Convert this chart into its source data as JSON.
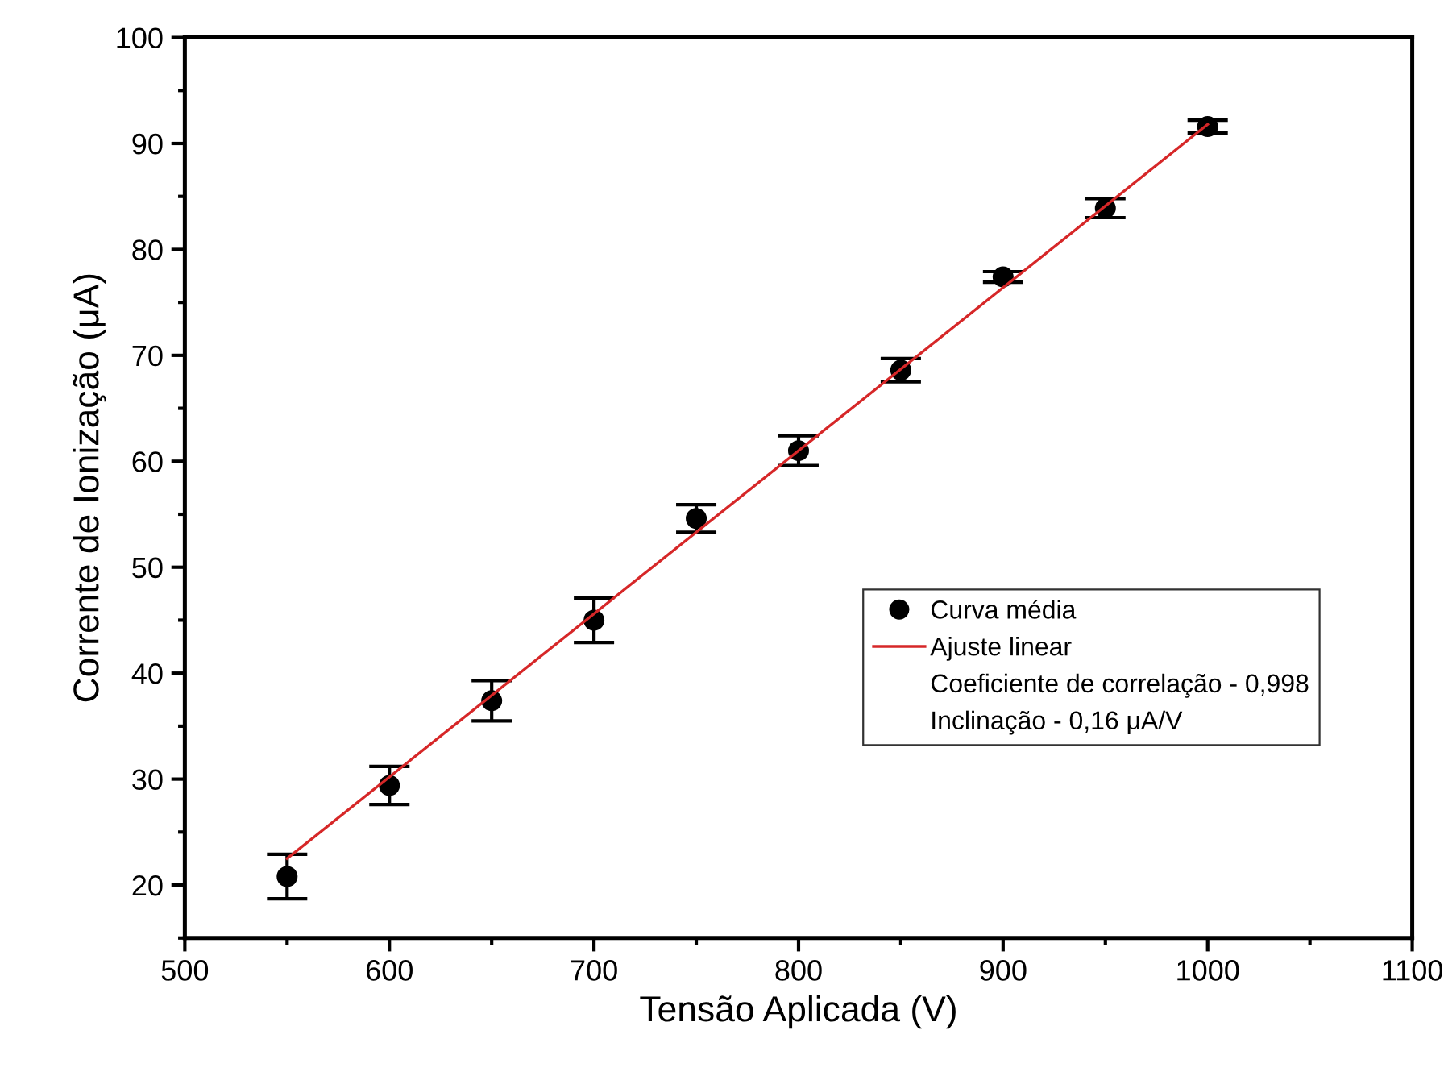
{
  "chart_data": {
    "type": "scatter",
    "xlabel": "Tensão Aplicada (V)",
    "ylabel": "Corrente de Ionização (μA)",
    "x": [
      550,
      600,
      650,
      700,
      750,
      800,
      850,
      900,
      950,
      1000
    ],
    "series": [
      {
        "name": "Curva média",
        "color": "#000000",
        "marker": "circle",
        "values": [
          20.8,
          29.4,
          37.4,
          45.0,
          54.6,
          61.0,
          68.6,
          77.4,
          83.9,
          91.6
        ],
        "errors": [
          2.1,
          1.8,
          1.9,
          2.1,
          1.3,
          1.4,
          1.1,
          0.5,
          0.9,
          0.6
        ]
      },
      {
        "name": "Ajuste linear",
        "type": "line",
        "color": "#d62728",
        "x": [
          550,
          1000
        ],
        "values": [
          22.5,
          91.8
        ]
      }
    ],
    "annotations": [
      "Coeficiente de correlação - 0,998",
      "Inclinação - 0,16 μA/V"
    ],
    "xlim": [
      500,
      1100
    ],
    "xticks": [
      500,
      600,
      700,
      800,
      900,
      1000,
      1100
    ],
    "ylim": [
      15,
      100
    ],
    "yticks": [
      20,
      30,
      40,
      50,
      60,
      70,
      80,
      90,
      100
    ],
    "grid": false,
    "legend": "bottom right"
  }
}
